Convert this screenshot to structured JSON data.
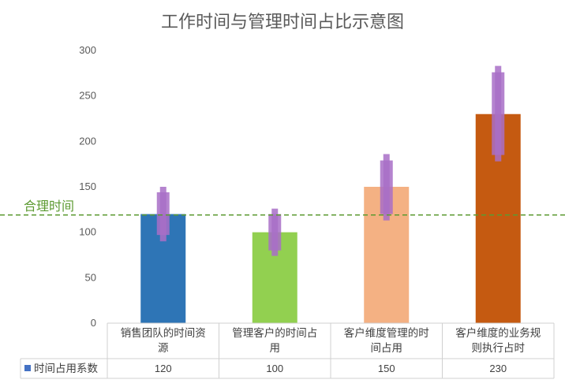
{
  "chart_data": {
    "type": "bar",
    "title": "工作时间与管理时间占比示意图",
    "xlabel": "",
    "ylabel": "",
    "ylim": [
      0,
      300
    ],
    "yticks": [
      0,
      50,
      100,
      150,
      200,
      250,
      300
    ],
    "grid": false,
    "categories": [
      [
        "销售团队的时间资",
        "源"
      ],
      [
        "管理客户的时间占",
        "用"
      ],
      [
        "客户维度管理的时",
        "间占用"
      ],
      [
        "客户维度的业务规",
        "则执行占时"
      ]
    ],
    "series": [
      {
        "name": "时间占用系数",
        "values": [
          120,
          100,
          150,
          230
        ],
        "colors": [
          "#2e75b6",
          "#92d050",
          "#f4b183",
          "#c55a11"
        ],
        "legend_color": "#4472c4"
      }
    ],
    "range_markers": [
      {
        "outer": [
          90,
          150
        ],
        "inner": [
          97,
          144
        ]
      },
      {
        "outer": [
          74,
          126
        ],
        "inner": [
          80,
          120
        ]
      },
      {
        "outer": [
          113,
          186
        ],
        "inner": [
          120,
          179
        ]
      },
      {
        "outer": [
          178,
          283
        ],
        "inner": [
          185,
          276
        ]
      }
    ],
    "range_marker_color": "#a86fc7",
    "reference_line": {
      "label": "合理时间",
      "value": 119,
      "color": "#5c9a31",
      "style": "dashed"
    },
    "data_table": {
      "show": true,
      "values": [
        "120",
        "100",
        "150",
        "230"
      ]
    }
  }
}
